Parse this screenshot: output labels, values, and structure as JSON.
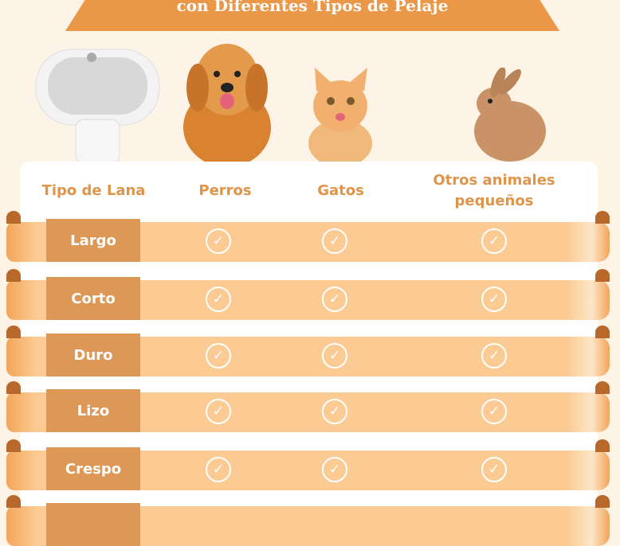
{
  "title": "con Diferentes Tipos de Pelaje",
  "headers": [
    "Tipo de Lana",
    "Perros",
    "Gatos",
    "Otros animales pequeños"
  ],
  "rows": [
    {
      "label": "Largo",
      "perros": true,
      "gatos": true,
      "otros": true
    },
    {
      "label": "Corto",
      "perros": true,
      "gatos": true,
      "otros": true
    },
    {
      "label": "Duro",
      "perros": true,
      "gatos": true,
      "otros": true
    },
    {
      "label": "Lizo",
      "perros": true,
      "gatos": true,
      "otros": true
    },
    {
      "label": "Crespo",
      "perros": true,
      "gatos": true,
      "otros": true
    }
  ],
  "check_icon": "✓",
  "colors": {
    "accent": "#eb9748",
    "band": "#fccb94",
    "label_bg": "#dd9757",
    "background": "#fdf4e7"
  }
}
